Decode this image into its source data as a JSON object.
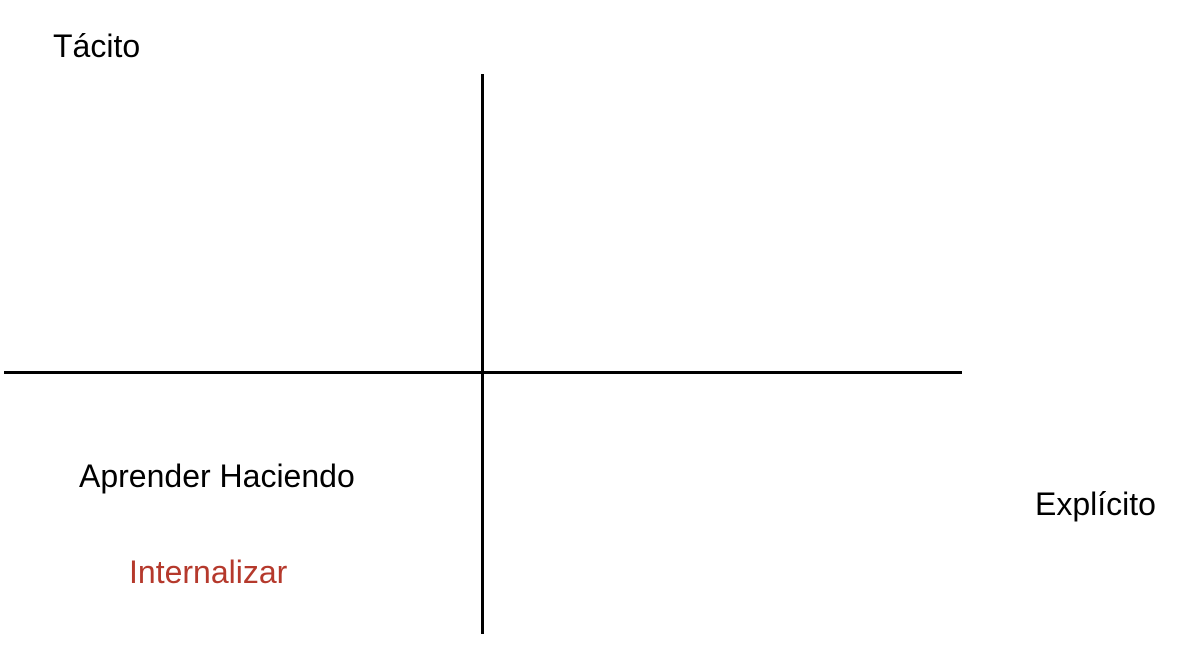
{
  "labels": {
    "top_axis": "Tácito",
    "right_axis": "Explícito",
    "quadrant_activity": "Aprender Haciendo",
    "quadrant_process": "Internalizar"
  },
  "colors": {
    "text": "#000000",
    "axis": "#000000",
    "highlight": "#b5392c",
    "background": "#ffffff"
  }
}
